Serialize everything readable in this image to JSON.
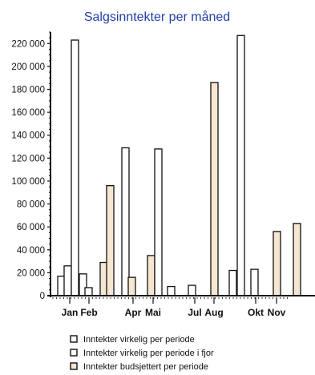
{
  "chart_data": {
    "type": "bar",
    "title": "Salgsinntekter per måned",
    "xlabel": "",
    "ylabel": "",
    "ylim": [
      0,
      230000
    ],
    "ytick_values": [
      0,
      20000,
      40000,
      60000,
      80000,
      100000,
      120000,
      140000,
      160000,
      180000,
      200000,
      220000
    ],
    "ytick_labels": [
      "0",
      "20 000",
      "40 000",
      "60 000",
      "80 000",
      "100 000",
      "120 000",
      "140 000",
      "160 000",
      "180 000",
      "200 000",
      "220 000"
    ],
    "month_labels": [
      "Jan",
      "Feb",
      "Apr",
      "Mai",
      "Jul",
      "Aug",
      "Okt",
      "Nov"
    ],
    "legend_placement": "bottom",
    "grid": false,
    "colors": {
      "title": "#1f3ea8",
      "series_virkelig": "#ffffff",
      "series_fjor": "#ffffff",
      "series_budsjett": "#f6e6d2",
      "outline": "#111111"
    },
    "series": [
      {
        "name": "Inntekter virkelig per periode",
        "legend_label": "Inntekter virkelig per periode"
      },
      {
        "name": "Inntekter virkelig per periode i fjor",
        "legend_label": "Inntekter virkelig per periode i fjor"
      },
      {
        "name": "Inntekter budsjettert per periode",
        "legend_label": "Inntekter budsjettert per periode"
      }
    ],
    "bars": [
      {
        "series": 1,
        "value": 17000
      },
      {
        "series": 0,
        "value": 26000
      },
      {
        "series": 1,
        "value": 223000
      },
      {
        "series": 1,
        "value": 19000
      },
      {
        "series": 0,
        "value": 7000
      },
      {
        "series": 2,
        "value": 29000
      },
      {
        "series": 2,
        "value": 96000
      },
      {
        "series": 1,
        "value": 129000
      },
      {
        "series": 2,
        "value": 16000
      },
      {
        "series": 2,
        "value": 35000
      },
      {
        "series": 1,
        "value": 128000
      },
      {
        "series": 1,
        "value": 8000
      },
      {
        "series": 1,
        "value": 9000
      },
      {
        "series": 2,
        "value": 186000
      },
      {
        "series": 1,
        "value": 22000
      },
      {
        "series": 1,
        "value": 227000
      },
      {
        "series": 1,
        "value": 23000
      },
      {
        "series": 2,
        "value": 56000
      },
      {
        "series": 2,
        "value": 63000
      }
    ]
  }
}
